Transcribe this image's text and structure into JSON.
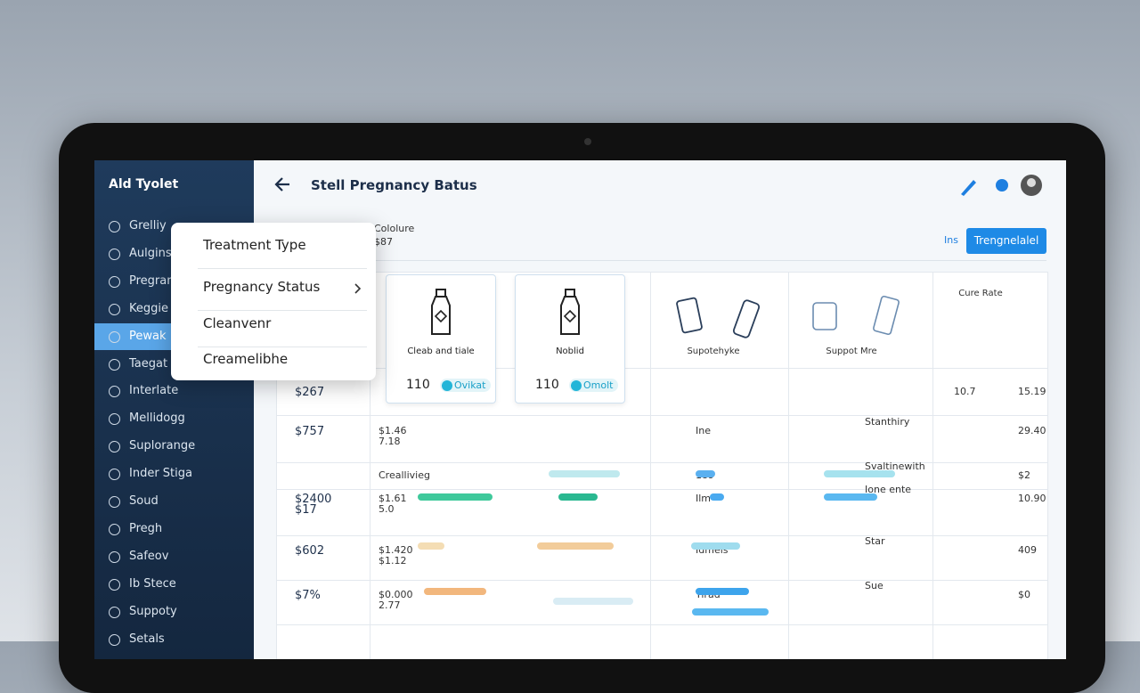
{
  "sidebar": {
    "title": "Ald Tyolet",
    "items": [
      "Grelliy",
      "Aulgins",
      "Pregran",
      "Keggie",
      "Pewak",
      "Taegat",
      "Interlate",
      "Mellidogg",
      "Suplorange",
      "Inder Stiga",
      "Soud",
      "Pregh",
      "Safeov",
      "Ib Stece",
      "Suppoty",
      "Setals"
    ],
    "active": "Pewak"
  },
  "header": {
    "title": "Stell Pregnancy Batus"
  },
  "subheader": {
    "label": "Cololure",
    "value": "$87",
    "link": "Ins",
    "button": "Trengnelalel"
  },
  "dropdown": [
    "Treatment Type",
    "Pregnancy Status",
    "Cleanvenr",
    "Creamelibhe"
  ],
  "table": {
    "cards": [
      {
        "label": "Cleab and tiale",
        "value": "110",
        "tag": "Ovikat"
      },
      {
        "label": "Noblid",
        "value": "110",
        "tag": "Omolt"
      }
    ],
    "headers": [
      "Supotehyke",
      "Suppot Mre",
      "Cure Rate"
    ],
    "rows": [
      {
        "price": "$267",
        "cure": "10.7",
        "rate": "15.19"
      },
      {
        "price": "$757",
        "detail": "$1.46",
        "detail_sub": "7.18",
        "mid": "Ine",
        "side": "Stanthiry",
        "rate": "29.40"
      },
      {
        "detail": "Creallivieg",
        "mid": "189",
        "side": "Svaltinewith",
        "rate": "$2"
      },
      {
        "price": "$2400",
        "price_sub": "$17",
        "detail": "$1.61",
        "detail_sub": "5.0",
        "mid": "Ilm",
        "side": "Ione ente",
        "rate": "10.90"
      },
      {
        "price": "$602",
        "detail": "$1.420",
        "detail_sub": "$1.12",
        "mid": "Idmels",
        "side": "Star",
        "rate": "409"
      },
      {
        "price": "$7%",
        "detail": "$0.000",
        "detail_sub": "2.77",
        "mid": "Tirad",
        "side": "Sue",
        "rate": "$0"
      }
    ]
  }
}
